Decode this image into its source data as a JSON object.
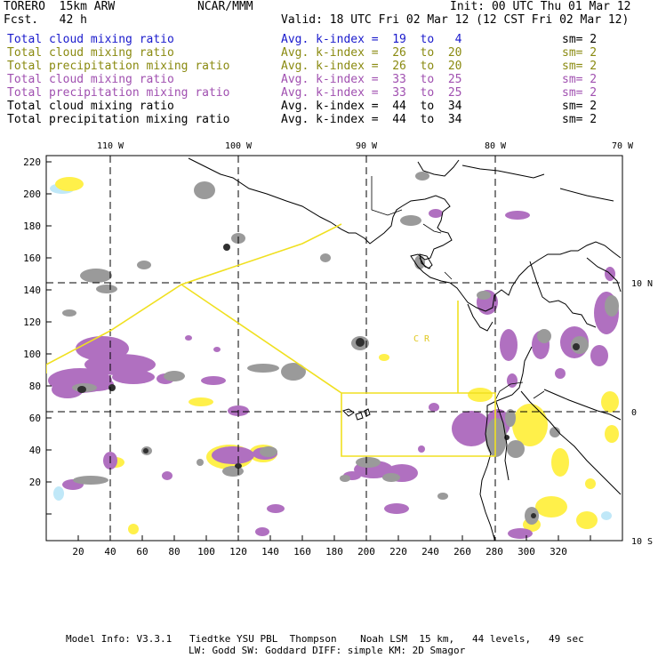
{
  "header": {
    "model": "TORERO  15km ARW",
    "org": "NCAR/MMM",
    "init": "Init: 00 UTC Thu 01 Mar 12",
    "fcst": "Fcst.   42 h",
    "valid": "Valid: 18 UTC Fri 02 Mar 12 (12 CST Fri 02 Mar 12)"
  },
  "legend": [
    {
      "field": "Total cloud mixing ratio",
      "kindex": "Avg. k-index =  19  to   4",
      "sm": "sm= 2",
      "color": "#1a1acc"
    },
    {
      "field": "Total cloud mixing ratio",
      "kindex": "Avg. k-index =  26  to  20",
      "sm": "sm= 2",
      "color": "#8a8a10"
    },
    {
      "field": "Total precipitation mixing ratio",
      "kindex": "Avg. k-index =  26  to  20",
      "sm": "sm= 2",
      "color": "#8a8a10"
    },
    {
      "field": "Total cloud mixing ratio",
      "kindex": "Avg. k-index =  33  to  25",
      "sm": "sm= 2",
      "color": "#a050b0"
    },
    {
      "field": "Total precipitation mixing ratio",
      "kindex": "Avg. k-index =  33  to  25",
      "sm": "sm= 2",
      "color": "#a050b0"
    },
    {
      "field": "Total cloud mixing ratio",
      "kindex": "Avg. k-index =  44  to  34",
      "sm": "sm= 2",
      "color": "#000000"
    },
    {
      "field": "Total precipitation mixing ratio",
      "kindex": "Avg. k-index =  44  to  34",
      "sm": "sm= 2",
      "color": "#000000"
    }
  ],
  "map": {
    "lon_labels": [
      "110 W",
      "100 W",
      "90 W",
      "80 W",
      "70 W"
    ],
    "lat_labels": [
      "10 N",
      "0",
      "10 S"
    ],
    "y_ticks": [
      "220",
      "200",
      "180",
      "160",
      "140",
      "120",
      "100",
      "80",
      "60",
      "40",
      "20"
    ],
    "x_ticks": [
      "20",
      "40",
      "60",
      "80",
      "100",
      "120",
      "140",
      "160",
      "180",
      "200",
      "220",
      "240",
      "260",
      "280",
      "300",
      "320"
    ],
    "region_label": "C R",
    "colors": {
      "coast": "#000000",
      "boundary": "#f0e020",
      "purple": "#b070c0",
      "gray": "#9a9a9a",
      "dark": "#303030",
      "yellow": "#fff04a",
      "cyan": "#c0e8f8"
    }
  },
  "footer": {
    "line1": "Model Info: V3.3.1   Tiedtke YSU PBL  Thompson    Noah LSM  15 km,   44 levels,   49 sec",
    "line2": "LW: Godd SW: Goddard DIFF: simple KM: 2D Smagor"
  }
}
